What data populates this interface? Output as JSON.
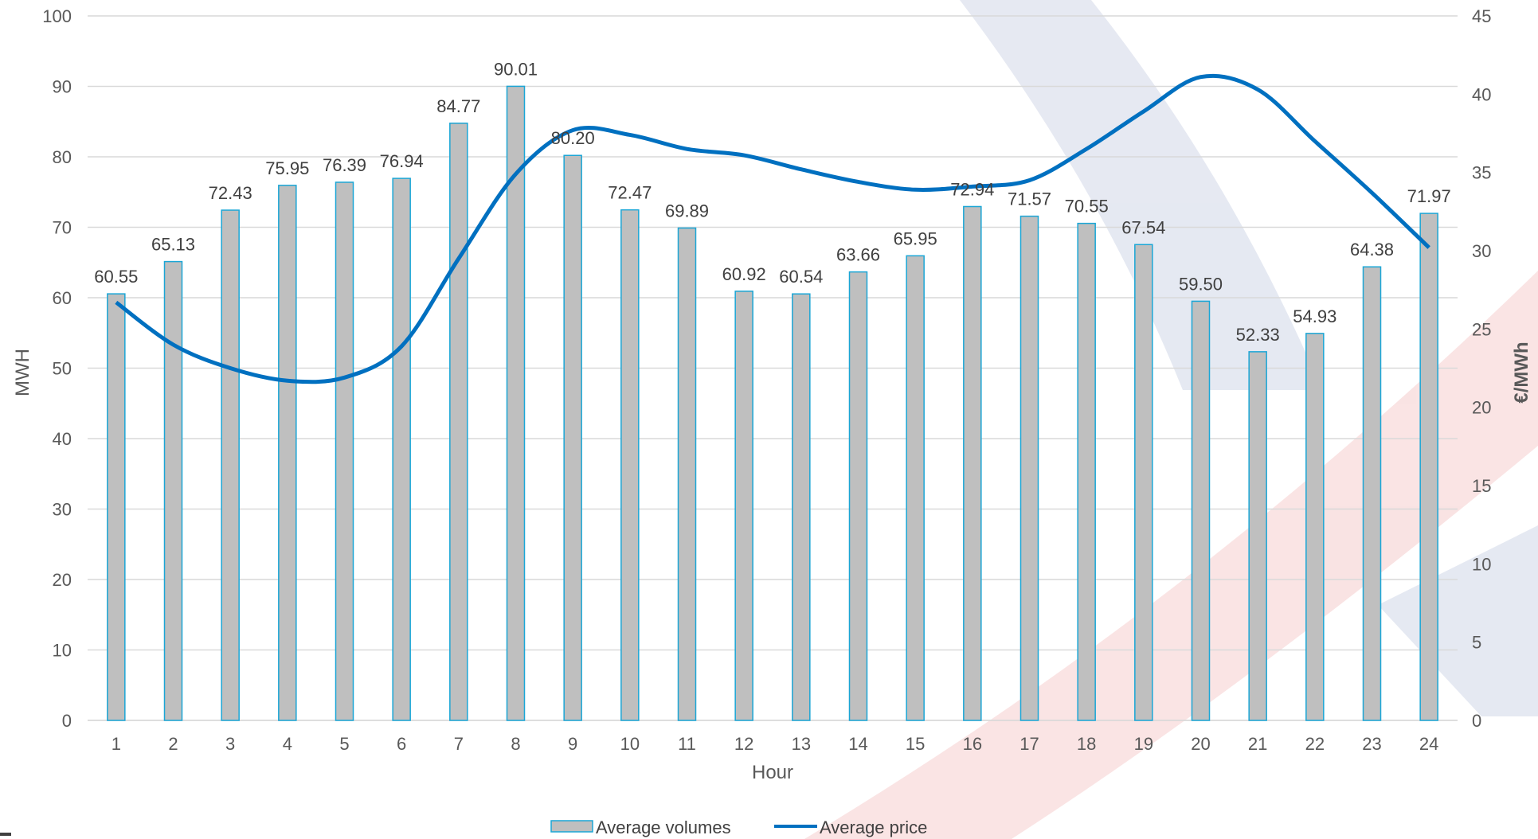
{
  "chart_data": {
    "type": "bar",
    "xlabel": "Hour",
    "ylabel": "MWH",
    "y2label": "€/MWh",
    "ylim": [
      0,
      100
    ],
    "y2lim": [
      0,
      45
    ],
    "yticks": [
      "0",
      "10",
      "20",
      "30",
      "40",
      "50",
      "60",
      "70",
      "80",
      "90",
      "100"
    ],
    "y2ticks": [
      "0",
      "5",
      "10",
      "15",
      "20",
      "25",
      "30",
      "35",
      "40",
      "45"
    ],
    "grid": true,
    "legend_position": "bottom",
    "categories": [
      "1",
      "2",
      "3",
      "4",
      "5",
      "6",
      "7",
      "8",
      "9",
      "10",
      "11",
      "12",
      "13",
      "14",
      "15",
      "16",
      "17",
      "18",
      "19",
      "20",
      "21",
      "22",
      "23",
      "24"
    ],
    "series": [
      {
        "name": "Average volumes",
        "type": "bar",
        "axis": "left",
        "color": "#bfbfbf",
        "border": "#1aa6d6",
        "values": [
          60.55,
          65.13,
          72.43,
          75.95,
          76.39,
          76.94,
          84.77,
          90.01,
          80.2,
          72.47,
          69.89,
          60.92,
          60.54,
          63.66,
          65.95,
          72.94,
          71.57,
          70.55,
          67.54,
          59.5,
          52.33,
          54.93,
          64.38,
          71.97
        ],
        "labels": [
          "60.55",
          "65.13",
          "72.43",
          "75.95",
          "76.39",
          "76.94",
          "84.77",
          "90.01",
          "80.20",
          "72.47",
          "69.89",
          "60.92",
          "60.54",
          "63.66",
          "65.95",
          "72.94",
          "71.57",
          "70.55",
          "67.54",
          "59.50",
          "52.33",
          "54.93",
          "64.38",
          "71.97"
        ]
      },
      {
        "name": "Average price",
        "type": "line",
        "axis": "right",
        "color": "#0070c0",
        "values": [
          26.7,
          24.0,
          22.5,
          21.7,
          21.9,
          23.9,
          29.5,
          34.9,
          37.7,
          37.4,
          36.5,
          36.1,
          35.2,
          34.4,
          33.9,
          34.1,
          34.5,
          36.5,
          38.9,
          41.1,
          40.3,
          37.0,
          33.7,
          30.2
        ]
      }
    ]
  }
}
